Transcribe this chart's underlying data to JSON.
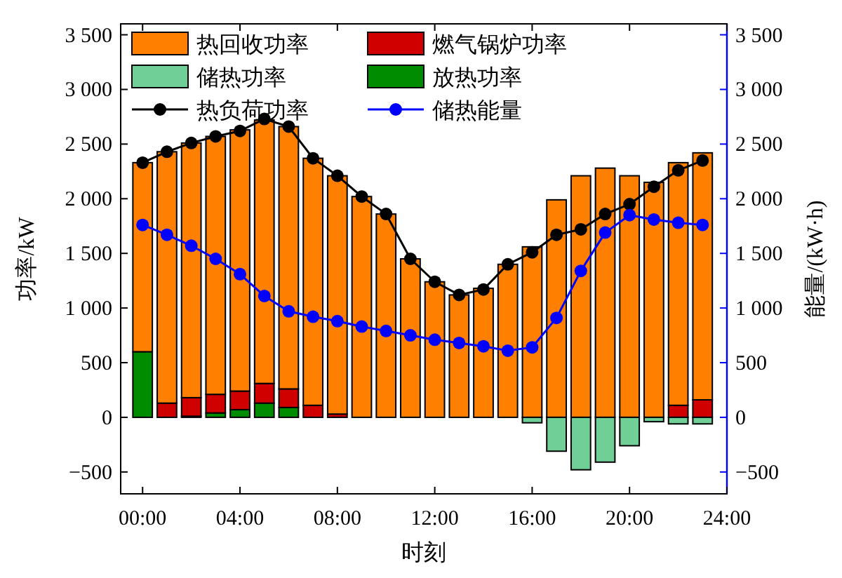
{
  "chart_data": {
    "type": "bar",
    "stacked": true,
    "xlabel": "时刻",
    "ylabel": "功率/kW",
    "y2label": "能量/(kW·h)",
    "x": [
      0,
      1,
      2,
      3,
      4,
      5,
      6,
      7,
      8,
      9,
      10,
      11,
      12,
      13,
      14,
      15,
      16,
      17,
      18,
      19,
      20,
      21,
      22,
      23
    ],
    "xlim": [
      -0.9,
      24
    ],
    "xticks": [
      {
        "value": 0,
        "label": "00:00"
      },
      {
        "value": 4,
        "label": "04:00"
      },
      {
        "value": 8,
        "label": "08:00"
      },
      {
        "value": 12,
        "label": "12:00"
      },
      {
        "value": 16,
        "label": "16:00"
      },
      {
        "value": 20,
        "label": "20:00"
      },
      {
        "value": 24,
        "label": "24:00"
      }
    ],
    "ylim": [
      -700,
      3600
    ],
    "yticks": [
      {
        "value": -500,
        "label": "−500"
      },
      0,
      500,
      {
        "value": 1000,
        "label": "1 000"
      },
      {
        "value": 1500,
        "label": "1 500"
      },
      {
        "value": 2000,
        "label": "2 000"
      },
      {
        "value": 2500,
        "label": "2 500"
      },
      {
        "value": 3000,
        "label": "3 000"
      },
      {
        "value": 3500,
        "label": "3 500"
      }
    ],
    "y2lim": [
      -700,
      3600
    ],
    "y2ticks": [
      {
        "value": -500,
        "label": "−500"
      },
      0,
      500,
      {
        "value": 1000,
        "label": "1 000"
      },
      {
        "value": 1500,
        "label": "1 500"
      },
      {
        "value": 2000,
        "label": "2 000"
      },
      {
        "value": 2500,
        "label": "2 500"
      },
      {
        "value": 3000,
        "label": "3 000"
      },
      {
        "value": 3500,
        "label": "3 500"
      }
    ],
    "legend": "top left",
    "series": [
      {
        "name": "放热功率",
        "color": "#008c00",
        "values": [
          600,
          0,
          10,
          40,
          70,
          130,
          90,
          0,
          0,
          0,
          0,
          0,
          0,
          0,
          0,
          0,
          0,
          0,
          0,
          0,
          0,
          0,
          0,
          0
        ]
      },
      {
        "name": "燃气锅炉功率",
        "color": "#d00000",
        "values": [
          0,
          130,
          170,
          170,
          170,
          180,
          170,
          110,
          30,
          0,
          0,
          0,
          0,
          0,
          0,
          0,
          0,
          0,
          0,
          0,
          0,
          0,
          110,
          160
        ]
      },
      {
        "name": "热回收功率",
        "color": "#ff8000",
        "values": [
          1730,
          2300,
          2330,
          2360,
          2390,
          2410,
          2400,
          2260,
          2180,
          2020,
          1860,
          1450,
          1240,
          1120,
          1180,
          1400,
          1560,
          1990,
          2210,
          2280,
          2210,
          2150,
          2220,
          2260
        ]
      },
      {
        "name": "储热功率",
        "color": "#6fcf97",
        "values": [
          0,
          0,
          0,
          0,
          0,
          0,
          0,
          0,
          0,
          0,
          0,
          0,
          0,
          0,
          0,
          0,
          -50,
          -310,
          -480,
          -410,
          -260,
          -40,
          -60,
          -60
        ]
      },
      {
        "name": "热负荷功率",
        "type": "line",
        "marker": "circle",
        "color": "#000000",
        "values": [
          2330,
          2430,
          2510,
          2570,
          2620,
          2730,
          2660,
          2370,
          2210,
          2020,
          1860,
          1450,
          1240,
          1120,
          1170,
          1400,
          1510,
          1670,
          1720,
          1860,
          1950,
          2110,
          2260,
          2350
        ]
      },
      {
        "name": "储热能量",
        "type": "line",
        "axis": "y2",
        "marker": "circle",
        "color": "#0000ff",
        "values": [
          1760,
          1670,
          1570,
          1450,
          1310,
          1110,
          970,
          920,
          880,
          830,
          790,
          750,
          710,
          680,
          650,
          610,
          640,
          910,
          1340,
          1690,
          1850,
          1810,
          1780,
          1760
        ]
      }
    ]
  }
}
